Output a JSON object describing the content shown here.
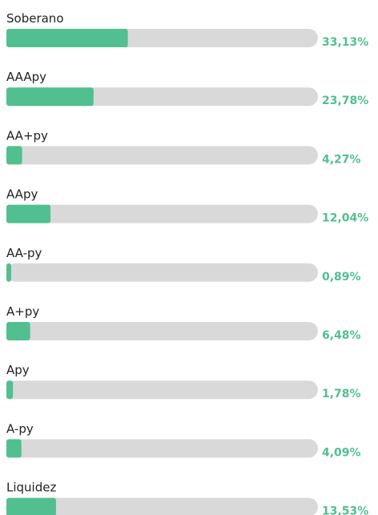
{
  "chart_data": {
    "type": "bar",
    "orientation": "horizontal",
    "categories": [
      "Soberano",
      "AAApy",
      "AA+py",
      "AApy",
      "AA-py",
      "A+py",
      "Apy",
      "A-py",
      "Liquidez"
    ],
    "values": [
      33.13,
      23.78,
      4.27,
      12.04,
      0.89,
      6.48,
      1.78,
      4.09,
      13.53
    ],
    "value_labels": [
      "33,13%",
      "23,78%",
      "4,27%",
      "12,04%",
      "0,89%",
      "6,48%",
      "1,78%",
      "4,09%",
      "13,53%"
    ],
    "color": "#52bf90",
    "track_color": "#d9d9d9",
    "xlim": [
      0,
      85
    ]
  }
}
